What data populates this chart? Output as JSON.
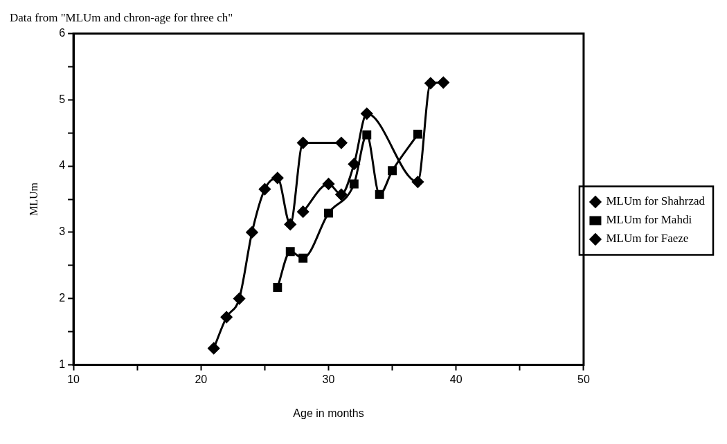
{
  "chart_data": {
    "type": "line",
    "title": "Data from \"MLUm and chron-age for three ch\"",
    "xlabel": "Age in months",
    "ylabel": "MLUm",
    "xlim": [
      10,
      50
    ],
    "xticks": [
      10,
      {
        "value": 15,
        "label": null
      },
      20,
      {
        "value": 25,
        "label": null
      },
      30,
      {
        "value": 35,
        "label": null
      },
      40,
      {
        "value": 45,
        "label": null
      },
      50
    ],
    "ylim": [
      1,
      6
    ],
    "yticks": [
      1,
      {
        "value": 1.5,
        "label": null
      },
      2,
      {
        "value": 2.5,
        "label": null
      },
      3,
      {
        "value": 3.5,
        "label": null
      },
      4,
      {
        "value": 4.5,
        "label": null
      },
      5,
      {
        "value": 5.5,
        "label": null
      },
      6
    ],
    "grid": false,
    "legend": "right",
    "line_style": "solid",
    "series": [
      {
        "name": "MLUm for Shahrzad",
        "color": "#000000",
        "marker": "diamond",
        "x": [
          21,
          22,
          23,
          24,
          25,
          26,
          27,
          28,
          31
        ],
        "values": [
          1.25,
          1.72,
          2.0,
          3.0,
          3.65,
          3.82,
          3.12,
          4.35,
          4.35
        ]
      },
      {
        "name": "MLUm for Mahdi",
        "color": "#000000",
        "marker": "square",
        "x": [
          26,
          27,
          28,
          30,
          32,
          33,
          34,
          35,
          37
        ],
        "values": [
          2.17,
          2.71,
          2.61,
          3.29,
          3.73,
          4.47,
          3.57,
          3.93,
          4.48
        ]
      },
      {
        "name": "MLUm for Faeze",
        "color": "#000000",
        "marker": "diamond",
        "x": [
          28,
          30,
          31,
          32,
          33,
          37,
          38,
          39
        ],
        "values": [
          3.31,
          3.73,
          3.57,
          4.03,
          4.79,
          3.76,
          5.25,
          5.26
        ]
      }
    ]
  }
}
